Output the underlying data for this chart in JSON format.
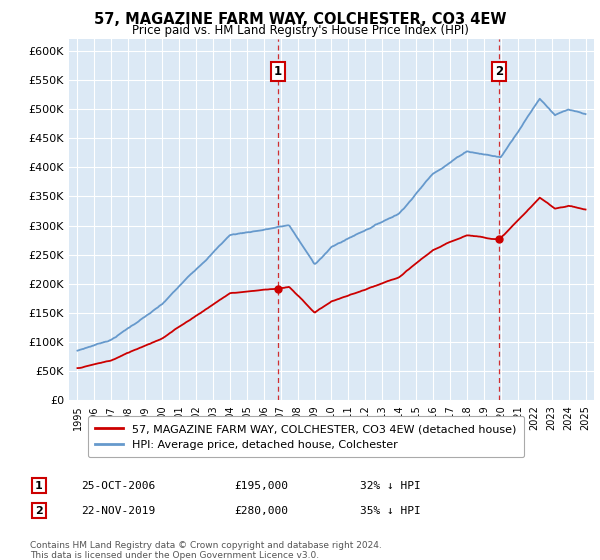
{
  "title": "57, MAGAZINE FARM WAY, COLCHESTER, CO3 4EW",
  "subtitle": "Price paid vs. HM Land Registry's House Price Index (HPI)",
  "legend_label_red": "57, MAGAZINE FARM WAY, COLCHESTER, CO3 4EW (detached house)",
  "legend_label_blue": "HPI: Average price, detached house, Colchester",
  "annotation1_date": "25-OCT-2006",
  "annotation1_price": "£195,000",
  "annotation1_hpi": "32% ↓ HPI",
  "annotation2_date": "22-NOV-2019",
  "annotation2_price": "£280,000",
  "annotation2_hpi": "35% ↓ HPI",
  "footer": "Contains HM Land Registry data © Crown copyright and database right 2024.\nThis data is licensed under the Open Government Licence v3.0.",
  "background_color": "#dce9f5",
  "red_color": "#cc0000",
  "blue_color": "#6699cc",
  "ylim_min": 0,
  "ylim_max": 620000,
  "ytick_step": 50000,
  "sale1_year": 2006.82,
  "sale1_price": 195000,
  "sale2_year": 2019.9,
  "sale2_price": 280000,
  "xmin": 1994.5,
  "xmax": 2025.5
}
